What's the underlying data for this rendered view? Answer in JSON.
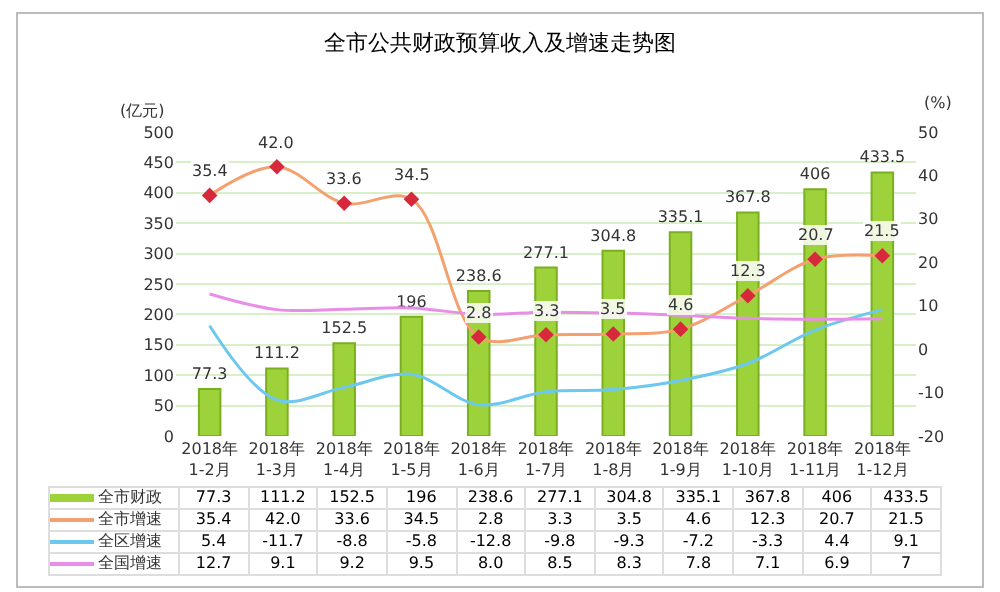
{
  "chart_data": {
    "type": "bar",
    "title": "全市公共财政预算收入及增速走势图",
    "ylabel": "(亿元)",
    "y2label": "(%)",
    "categories": [
      "2018年\n1-2月",
      "2018年\n1-3月",
      "2018年\n1-4月",
      "2018年\n1-5月",
      "2018年\n1-6月",
      "2018年\n1-7月",
      "2018年\n1-8月",
      "2018年\n1-9月",
      "2018年\n1-10月",
      "2018年\n1-11月",
      "2018年\n1-12月"
    ],
    "series": [
      {
        "name": "全市财政",
        "color": "#9ed23a",
        "values": [
          77.3,
          111.2,
          152.5,
          196,
          238.6,
          277.1,
          304.8,
          335.1,
          367.8,
          406,
          433.5
        ],
        "value_labels": [
          "77.3",
          "111.2",
          "152.5",
          "196",
          "238.6",
          "277.1",
          "304.8",
          "335.1",
          "367.8",
          "406",
          "433.5"
        ]
      },
      {
        "name": "全市增速",
        "type": "line",
        "axis": "y2",
        "color": "#f4a070",
        "marker": "diamond",
        "values": [
          35.4,
          42.0,
          33.6,
          34.5,
          2.8,
          3.3,
          3.5,
          4.6,
          12.3,
          20.7,
          21.5
        ],
        "value_labels": [
          "35.4",
          "42.0",
          "33.6",
          "34.5",
          "2.8",
          "3.3",
          "3.5",
          "4.6",
          "12.3",
          "20.7",
          "21.5"
        ]
      },
      {
        "name": "全区增速",
        "type": "line",
        "axis": "y2",
        "color": "#6cc8ee",
        "marker": "none",
        "values": [
          5.4,
          -11.7,
          -8.8,
          -5.8,
          -12.8,
          -9.8,
          -9.3,
          -7.2,
          -3.3,
          4.4,
          9.1
        ]
      },
      {
        "name": "全国增速",
        "type": "line",
        "axis": "y2",
        "color": "#e88ee8",
        "marker": "none",
        "values": [
          12.7,
          9.1,
          9.2,
          9.5,
          8.0,
          8.5,
          8.3,
          7.8,
          7.1,
          6.9,
          7
        ],
        "value_labels": [
          "12.7",
          "9.1",
          "9.2",
          "9.5",
          "8.0",
          "8.5",
          "8.3",
          "7.8",
          "7.1",
          "6.9",
          "7"
        ]
      }
    ],
    "ylim": [
      0,
      500
    ],
    "yticks": [
      0,
      50,
      100,
      150,
      200,
      250,
      300,
      350,
      400,
      450,
      500
    ],
    "y2lim": [
      -20,
      50
    ],
    "y2ticks": [
      -20,
      -10,
      0,
      10,
      20,
      30,
      40,
      50
    ],
    "grid": "y",
    "legend": "bottom",
    "line_style": "solid",
    "data_labels": true
  }
}
